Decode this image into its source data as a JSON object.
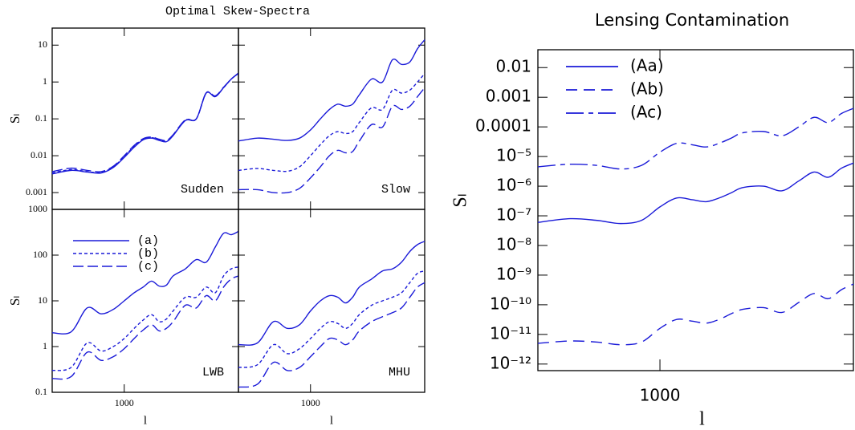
{
  "chart_data": [
    {
      "type": "log-panels",
      "title": "Optimal Skew-Spectra",
      "xlabel": "l",
      "ylabel": "Sₗ",
      "x": [
        500,
        600,
        700,
        800,
        900,
        1000,
        1100,
        1200,
        1300,
        1400,
        1500,
        1600,
        1800,
        2000,
        2200,
        2400,
        2600,
        2800,
        3000
      ],
      "xlim": [
        500,
        3000
      ],
      "xticks": [
        1000
      ],
      "log_x": true,
      "log_y": true,
      "series": [
        {
          "name": "(a)",
          "color": "#1a1ad8",
          "dash": "solid"
        },
        {
          "name": "(b)",
          "color": "#1a1ad8",
          "dash": "4,3"
        },
        {
          "name": "(c)",
          "color": "#1a1ad8",
          "dash": "13,5"
        }
      ],
      "legend_panel": "LWB",
      "rows": [
        {
          "ylim": [
            0.00035,
            29
          ],
          "yticks": [
            0.001,
            0.01,
            0.1,
            1,
            10
          ],
          "panels": [
            {
              "label": "Sudden",
              "series": [
                {
                  "values": [
                    0.0032,
                    0.004,
                    0.0036,
                    0.0034,
                    0.0048,
                    0.009,
                    0.017,
                    0.027,
                    0.03,
                    0.026,
                    0.024,
                    0.035,
                    0.09,
                    0.1,
                    0.5,
                    0.4,
                    0.7,
                    1.2,
                    1.7
                  ]
                },
                {
                  "values": [
                    0.0034,
                    0.0042,
                    0.0037,
                    0.0035,
                    0.005,
                    0.0095,
                    0.018,
                    0.028,
                    0.031,
                    0.027,
                    0.025,
                    0.036,
                    0.092,
                    0.1,
                    0.5,
                    0.41,
                    0.7,
                    1.2,
                    1.7
                  ]
                },
                {
                  "values": [
                    0.0037,
                    0.0046,
                    0.004,
                    0.0037,
                    0.0052,
                    0.01,
                    0.019,
                    0.029,
                    0.032,
                    0.028,
                    0.026,
                    0.037,
                    0.094,
                    0.1,
                    0.51,
                    0.42,
                    0.72,
                    1.2,
                    1.75
                  ]
                }
              ]
            },
            {
              "label": "Slow",
              "series": [
                {
                  "values": [
                    0.025,
                    0.03,
                    0.028,
                    0.026,
                    0.03,
                    0.05,
                    0.1,
                    0.18,
                    0.25,
                    0.22,
                    0.25,
                    0.45,
                    1.2,
                    1.0,
                    4,
                    3,
                    3.5,
                    8,
                    14
                  ]
                },
                {
                  "values": [
                    0.004,
                    0.0045,
                    0.004,
                    0.0038,
                    0.005,
                    0.01,
                    0.02,
                    0.035,
                    0.045,
                    0.04,
                    0.045,
                    0.08,
                    0.2,
                    0.18,
                    0.6,
                    0.5,
                    0.6,
                    1.0,
                    1.7
                  ]
                },
                {
                  "values": [
                    0.0012,
                    0.0012,
                    0.001,
                    0.001,
                    0.0013,
                    0.0025,
                    0.005,
                    0.01,
                    0.014,
                    0.012,
                    0.013,
                    0.025,
                    0.07,
                    0.06,
                    0.22,
                    0.18,
                    0.22,
                    0.4,
                    0.7
                  ]
                }
              ]
            }
          ]
        },
        {
          "ylim": [
            0.1,
            1000
          ],
          "yticks": [
            0.1,
            1,
            10,
            100,
            1000
          ],
          "panels": [
            {
              "label": "LWB",
              "series": [
                {
                  "values": [
                    2,
                    2.1,
                    7,
                    5.2,
                    6.5,
                    10,
                    15,
                    20,
                    27,
                    21,
                    22,
                    35,
                    50,
                    80,
                    70,
                    150,
                    300,
                    280,
                    330
                  ]
                },
                {
                  "values": [
                    0.3,
                    0.35,
                    1.2,
                    0.8,
                    1.0,
                    1.5,
                    2.5,
                    3.8,
                    5,
                    3.5,
                    4,
                    6,
                    12,
                    12,
                    20,
                    15,
                    35,
                    50,
                    55
                  ]
                },
                {
                  "values": [
                    0.2,
                    0.22,
                    0.75,
                    0.5,
                    0.6,
                    0.9,
                    1.5,
                    2.3,
                    3,
                    2.2,
                    2.5,
                    3.5,
                    8,
                    7,
                    13,
                    10,
                    20,
                    30,
                    35
                  ]
                }
              ]
            },
            {
              "label": "MHU",
              "series": [
                {
                  "values": [
                    1.1,
                    1.2,
                    3.5,
                    2.5,
                    3,
                    6,
                    10,
                    13,
                    12,
                    9,
                    12,
                    20,
                    30,
                    45,
                    50,
                    70,
                    120,
                    170,
                    200
                  ]
                },
                {
                  "values": [
                    0.35,
                    0.4,
                    1.1,
                    0.7,
                    0.9,
                    1.5,
                    2.5,
                    3.5,
                    3.2,
                    2.5,
                    3.2,
                    5,
                    8,
                    10,
                    12,
                    15,
                    25,
                    40,
                    45
                  ]
                },
                {
                  "values": [
                    0.13,
                    0.15,
                    0.45,
                    0.3,
                    0.35,
                    0.6,
                    1.0,
                    1.5,
                    1.4,
                    1.1,
                    1.4,
                    2.2,
                    3.5,
                    4.5,
                    5.5,
                    7,
                    12,
                    20,
                    25
                  ]
                }
              ]
            }
          ]
        }
      ]
    },
    {
      "type": "line",
      "title": "Lensing Contamination",
      "xlabel": "l",
      "ylabel": "Sₗ",
      "x": [
        500,
        600,
        700,
        800,
        900,
        1000,
        1100,
        1200,
        1300,
        1400,
        1500,
        1600,
        1800,
        2000,
        2200,
        2400,
        2600,
        2800,
        3000
      ],
      "xlim": [
        500,
        3000
      ],
      "xticks": [
        1000
      ],
      "log_x": true,
      "log_y": true,
      "ylim": [
        6e-13,
        0.04
      ],
      "yticks": [
        0.01,
        0.001,
        0.0001,
        {
          "value": 1e-05,
          "label": "10⁻⁵"
        },
        {
          "value": 1e-06,
          "label": "10⁻⁶"
        },
        {
          "value": 1e-07,
          "label": "10⁻⁷"
        },
        {
          "value": 1e-08,
          "label": "10⁻⁸"
        },
        {
          "value": 1e-09,
          "label": "10⁻⁹"
        },
        {
          "value": 1e-10,
          "label": "10⁻¹⁰"
        },
        {
          "value": 1e-11,
          "label": "10⁻¹¹"
        },
        {
          "value": 1e-12,
          "label": "10⁻¹²"
        }
      ],
      "legend": "top-left",
      "series": [
        {
          "name": "(Aa)",
          "color": "#1a1ad8",
          "dash": "solid",
          "values": [
            6e-08,
            8e-08,
            7e-08,
            5.5e-08,
            7e-08,
            2e-07,
            4e-07,
            3.5e-07,
            3e-07,
            4e-07,
            6e-07,
            9e-07,
            1e-06,
            7e-07,
            1.5e-06,
            3e-06,
            2e-06,
            4e-06,
            6e-06
          ]
        },
        {
          "name": "(Ab)",
          "color": "#1a1ad8",
          "dash": "14,8",
          "values": [
            5e-12,
            6e-12,
            5.5e-12,
            4.5e-12,
            5.5e-12,
            1.6e-11,
            3.2e-11,
            2.8e-11,
            2.4e-11,
            3.2e-11,
            5e-11,
            7e-11,
            8e-11,
            5.5e-11,
            1.2e-10,
            2.4e-10,
            1.6e-10,
            3.2e-10,
            5e-10
          ]
        },
        {
          "name": "(Ac)",
          "color": "#1a1ad8",
          "dash": "22,6,6,6",
          "values": [
            4.5e-06,
            5.5e-06,
            5e-06,
            3.8e-06,
            5e-06,
            1.4e-05,
            2.8e-05,
            2.5e-05,
            2.1e-05,
            2.8e-05,
            4.2e-05,
            6.3e-05,
            7e-05,
            5e-05,
            0.0001,
            0.00021,
            0.00014,
            0.00028,
            0.00042
          ]
        }
      ]
    }
  ]
}
